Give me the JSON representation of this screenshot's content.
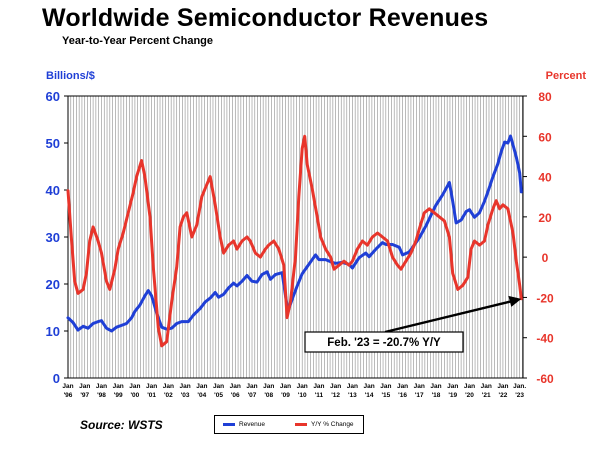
{
  "header": {
    "title": "Worldwide Semiconductor Revenues",
    "subtitle": "Year-to-Year Percent Change"
  },
  "source": "Source: WSTS",
  "colors": {
    "revenue": "#1f3fd6",
    "yoy": "#e8352b",
    "grid": "#8c8c8c"
  },
  "chart_data": {
    "type": "line",
    "yaxis_left": {
      "label": "Billions/$",
      "range": [
        0,
        60
      ],
      "ticks": [
        0,
        10,
        20,
        30,
        40,
        50,
        60
      ]
    },
    "yaxis_right": {
      "label": "Percent",
      "range": [
        -60,
        80
      ],
      "ticks": [
        -60,
        -40,
        -20,
        0,
        20,
        40,
        60,
        80
      ]
    },
    "x_range": [
      1996.0,
      2023.2
    ],
    "x_ticks": [
      {
        "pos": 1996,
        "line1": "Jan",
        "line2": "'96"
      },
      {
        "pos": 1997,
        "line1": "Jan",
        "line2": "'97"
      },
      {
        "pos": 1998,
        "line1": "Jan",
        "line2": "'98"
      },
      {
        "pos": 1999,
        "line1": "Jan",
        "line2": "'99"
      },
      {
        "pos": 2000,
        "line1": "Jan",
        "line2": "'00"
      },
      {
        "pos": 2001,
        "line1": "Jan",
        "line2": "'01"
      },
      {
        "pos": 2002,
        "line1": "Jan",
        "line2": "'02"
      },
      {
        "pos": 2003,
        "line1": "Jan",
        "line2": "'03"
      },
      {
        "pos": 2004,
        "line1": "Jan",
        "line2": "'04"
      },
      {
        "pos": 2005,
        "line1": "Jan",
        "line2": "'05"
      },
      {
        "pos": 2006,
        "line1": "Jan",
        "line2": "'06"
      },
      {
        "pos": 2007,
        "line1": "Jan",
        "line2": "'07"
      },
      {
        "pos": 2008,
        "line1": "Jan",
        "line2": "'08"
      },
      {
        "pos": 2009,
        "line1": "Jan",
        "line2": "'09"
      },
      {
        "pos": 2010,
        "line1": "Jan",
        "line2": "'10"
      },
      {
        "pos": 2011,
        "line1": "Jan",
        "line2": "'11"
      },
      {
        "pos": 2012,
        "line1": "Jan",
        "line2": "'12"
      },
      {
        "pos": 2013,
        "line1": "Jan",
        "line2": "'13"
      },
      {
        "pos": 2014,
        "line1": "Jan",
        "line2": "'14"
      },
      {
        "pos": 2015,
        "line1": "Jan",
        "line2": "'15"
      },
      {
        "pos": 2016,
        "line1": "Jan",
        "line2": "'16"
      },
      {
        "pos": 2017,
        "line1": "Jan",
        "line2": "'17"
      },
      {
        "pos": 2018,
        "line1": "Jan",
        "line2": "'18"
      },
      {
        "pos": 2019,
        "line1": "Jan",
        "line2": "'19"
      },
      {
        "pos": 2020,
        "line1": "Jan",
        "line2": "'20"
      },
      {
        "pos": 2021,
        "line1": "Jan",
        "line2": "'21"
      },
      {
        "pos": 2022,
        "line1": "Jan",
        "line2": "'22"
      },
      {
        "pos": 2023,
        "line1": "Jan.",
        "line2": "'23"
      }
    ],
    "grid_months_step": 2,
    "series": [
      {
        "name": "Revenue",
        "axis": "left",
        "points": [
          [
            1996.0,
            12.8
          ],
          [
            1996.3,
            11.8
          ],
          [
            1996.6,
            10.2
          ],
          [
            1996.9,
            11.0
          ],
          [
            1997.2,
            10.6
          ],
          [
            1997.5,
            11.6
          ],
          [
            1997.8,
            12.0
          ],
          [
            1998.0,
            12.2
          ],
          [
            1998.3,
            10.6
          ],
          [
            1998.6,
            10.0
          ],
          [
            1998.9,
            10.8
          ],
          [
            1999.2,
            11.2
          ],
          [
            1999.5,
            11.6
          ],
          [
            1999.8,
            12.8
          ],
          [
            2000.0,
            14.2
          ],
          [
            2000.3,
            15.5
          ],
          [
            2000.6,
            17.5
          ],
          [
            2000.8,
            18.6
          ],
          [
            2001.0,
            17.5
          ],
          [
            2001.3,
            13.8
          ],
          [
            2001.6,
            10.8
          ],
          [
            2001.9,
            10.4
          ],
          [
            2002.2,
            10.6
          ],
          [
            2002.5,
            11.6
          ],
          [
            2002.8,
            12.0
          ],
          [
            2003.2,
            12.0
          ],
          [
            2003.5,
            13.4
          ],
          [
            2003.9,
            14.8
          ],
          [
            2004.2,
            16.2
          ],
          [
            2004.5,
            17.0
          ],
          [
            2004.8,
            18.2
          ],
          [
            2005.0,
            17.2
          ],
          [
            2005.3,
            17.8
          ],
          [
            2005.6,
            19.2
          ],
          [
            2005.9,
            20.2
          ],
          [
            2006.1,
            19.6
          ],
          [
            2006.4,
            20.6
          ],
          [
            2006.7,
            21.8
          ],
          [
            2007.0,
            20.6
          ],
          [
            2007.3,
            20.4
          ],
          [
            2007.6,
            22.0
          ],
          [
            2007.9,
            22.6
          ],
          [
            2008.1,
            21.0
          ],
          [
            2008.4,
            22.0
          ],
          [
            2008.8,
            22.4
          ],
          [
            2009.0,
            17.5
          ],
          [
            2009.15,
            14.2
          ],
          [
            2009.4,
            16.8
          ],
          [
            2009.7,
            19.6
          ],
          [
            2010.0,
            22.2
          ],
          [
            2010.4,
            24.2
          ],
          [
            2010.8,
            26.2
          ],
          [
            2011.0,
            25.2
          ],
          [
            2011.4,
            25.2
          ],
          [
            2011.8,
            24.6
          ],
          [
            2012.0,
            24.4
          ],
          [
            2012.4,
            24.6
          ],
          [
            2012.8,
            24.2
          ],
          [
            2013.0,
            23.4
          ],
          [
            2013.4,
            25.6
          ],
          [
            2013.8,
            26.6
          ],
          [
            2014.0,
            25.8
          ],
          [
            2014.4,
            27.4
          ],
          [
            2014.8,
            28.8
          ],
          [
            2015.0,
            28.4
          ],
          [
            2015.4,
            28.4
          ],
          [
            2015.8,
            27.8
          ],
          [
            2016.0,
            26.2
          ],
          [
            2016.4,
            26.8
          ],
          [
            2016.8,
            28.8
          ],
          [
            2017.0,
            29.8
          ],
          [
            2017.4,
            32.4
          ],
          [
            2017.8,
            35.4
          ],
          [
            2018.0,
            36.8
          ],
          [
            2018.4,
            39.0
          ],
          [
            2018.8,
            41.6
          ],
          [
            2019.0,
            37.6
          ],
          [
            2019.2,
            33.0
          ],
          [
            2019.5,
            33.6
          ],
          [
            2019.8,
            35.4
          ],
          [
            2020.0,
            35.8
          ],
          [
            2020.3,
            34.2
          ],
          [
            2020.6,
            35.2
          ],
          [
            2020.9,
            37.6
          ],
          [
            2021.1,
            39.6
          ],
          [
            2021.4,
            42.8
          ],
          [
            2021.7,
            45.6
          ],
          [
            2021.9,
            48.2
          ],
          [
            2022.1,
            50.2
          ],
          [
            2022.3,
            50.0
          ],
          [
            2022.45,
            51.5
          ],
          [
            2022.6,
            49.6
          ],
          [
            2022.8,
            47.0
          ],
          [
            2023.0,
            43.6
          ],
          [
            2023.1,
            39.6
          ]
        ]
      },
      {
        "name": "Y/Y % Change",
        "axis": "right",
        "points": [
          [
            1996.0,
            33
          ],
          [
            1996.2,
            10
          ],
          [
            1996.4,
            -12
          ],
          [
            1996.6,
            -18
          ],
          [
            1996.9,
            -16
          ],
          [
            1997.1,
            -8
          ],
          [
            1997.3,
            8
          ],
          [
            1997.5,
            15
          ],
          [
            1997.8,
            8
          ],
          [
            1998.0,
            2
          ],
          [
            1998.3,
            -12
          ],
          [
            1998.5,
            -16
          ],
          [
            1998.8,
            -6
          ],
          [
            1999.0,
            4
          ],
          [
            1999.3,
            12
          ],
          [
            1999.6,
            22
          ],
          [
            1999.9,
            32
          ],
          [
            2000.1,
            40
          ],
          [
            2000.4,
            48
          ],
          [
            2000.6,
            40
          ],
          [
            2000.9,
            20
          ],
          [
            2001.1,
            -5
          ],
          [
            2001.4,
            -35
          ],
          [
            2001.6,
            -44
          ],
          [
            2001.9,
            -42
          ],
          [
            2002.2,
            -22
          ],
          [
            2002.5,
            -5
          ],
          [
            2002.7,
            15
          ],
          [
            2002.9,
            20
          ],
          [
            2003.1,
            22
          ],
          [
            2003.4,
            10
          ],
          [
            2003.7,
            16
          ],
          [
            2004.0,
            30
          ],
          [
            2004.3,
            36
          ],
          [
            2004.5,
            40
          ],
          [
            2004.8,
            26
          ],
          [
            2005.1,
            10
          ],
          [
            2005.3,
            2
          ],
          [
            2005.6,
            6
          ],
          [
            2005.9,
            8
          ],
          [
            2006.1,
            4
          ],
          [
            2006.4,
            8
          ],
          [
            2006.7,
            10
          ],
          [
            2006.9,
            8
          ],
          [
            2007.2,
            2
          ],
          [
            2007.5,
            0
          ],
          [
            2007.8,
            4
          ],
          [
            2008.0,
            6
          ],
          [
            2008.3,
            8
          ],
          [
            2008.6,
            4
          ],
          [
            2008.9,
            -4
          ],
          [
            2009.1,
            -30
          ],
          [
            2009.3,
            -22
          ],
          [
            2009.6,
            0
          ],
          [
            2009.8,
            30
          ],
          [
            2010.0,
            54
          ],
          [
            2010.15,
            60
          ],
          [
            2010.3,
            46
          ],
          [
            2010.6,
            34
          ],
          [
            2010.9,
            20
          ],
          [
            2011.1,
            10
          ],
          [
            2011.4,
            4
          ],
          [
            2011.7,
            0
          ],
          [
            2011.9,
            -6
          ],
          [
            2012.2,
            -4
          ],
          [
            2012.5,
            -2
          ],
          [
            2012.8,
            -4
          ],
          [
            2013.0,
            -2
          ],
          [
            2013.3,
            4
          ],
          [
            2013.6,
            8
          ],
          [
            2013.9,
            6
          ],
          [
            2014.2,
            10
          ],
          [
            2014.5,
            12
          ],
          [
            2014.8,
            10
          ],
          [
            2015.1,
            8
          ],
          [
            2015.4,
            0
          ],
          [
            2015.7,
            -4
          ],
          [
            2015.9,
            -6
          ],
          [
            2016.2,
            -2
          ],
          [
            2016.5,
            2
          ],
          [
            2016.8,
            8
          ],
          [
            2017.0,
            14
          ],
          [
            2017.3,
            22
          ],
          [
            2017.6,
            24
          ],
          [
            2017.9,
            22
          ],
          [
            2018.2,
            20
          ],
          [
            2018.5,
            18
          ],
          [
            2018.8,
            10
          ],
          [
            2019.0,
            -8
          ],
          [
            2019.3,
            -16
          ],
          [
            2019.6,
            -14
          ],
          [
            2019.9,
            -10
          ],
          [
            2020.1,
            4
          ],
          [
            2020.3,
            8
          ],
          [
            2020.6,
            6
          ],
          [
            2020.9,
            8
          ],
          [
            2021.1,
            16
          ],
          [
            2021.4,
            24
          ],
          [
            2021.6,
            28
          ],
          [
            2021.8,
            24
          ],
          [
            2022.0,
            26
          ],
          [
            2022.3,
            24
          ],
          [
            2022.6,
            12
          ],
          [
            2022.8,
            -2
          ],
          [
            2023.0,
            -14
          ],
          [
            2023.1,
            -20.7
          ]
        ]
      }
    ],
    "annotation": {
      "text": "Feb. '23 = -20.7% Y/Y",
      "target": [
        2023.1,
        -20.7
      ],
      "axis": "right"
    },
    "legend": [
      "Revenue",
      "Y/Y % Change"
    ]
  }
}
